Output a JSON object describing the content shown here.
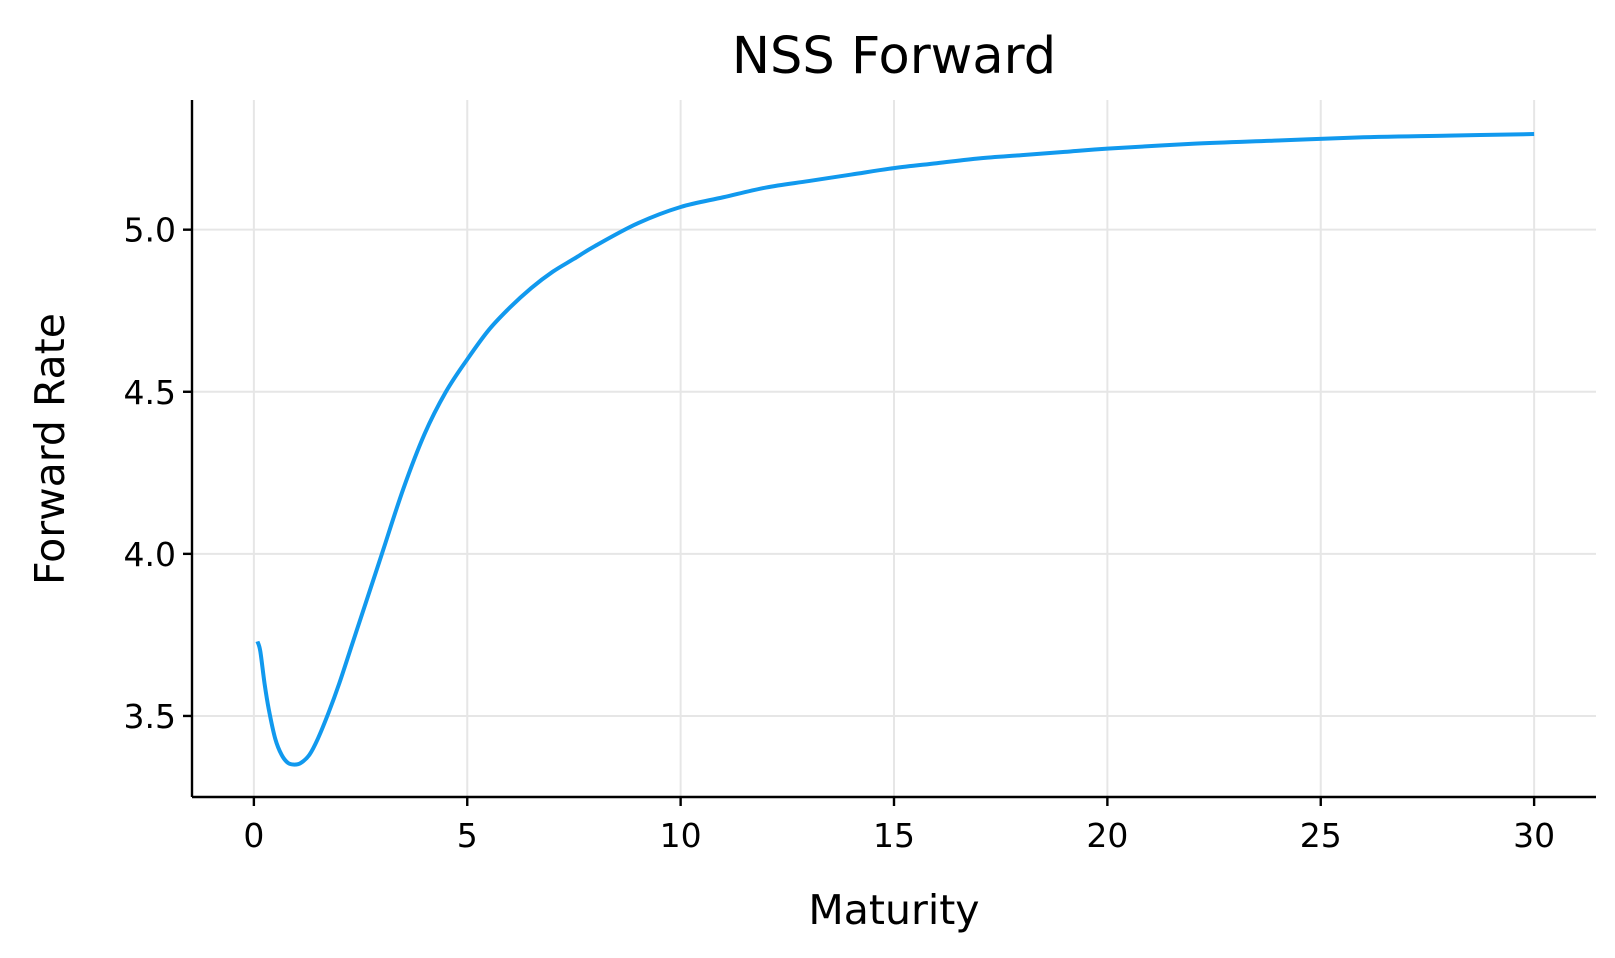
{
  "chart_data": {
    "type": "line",
    "title": "NSS Forward",
    "xlabel": "Maturity",
    "ylabel": "Forward Rate",
    "xlim": [
      -1.45,
      31.45
    ],
    "ylim": [
      3.25,
      5.4
    ],
    "xticks": [
      0,
      5,
      10,
      15,
      20,
      25,
      30
    ],
    "xtick_labels": [
      "0",
      "5",
      "10",
      "15",
      "20",
      "25",
      "30"
    ],
    "yticks": [
      3.5,
      4.0,
      4.5,
      5.0
    ],
    "ytick_labels": [
      "3.5",
      "4.0",
      "4.5",
      "5.0"
    ],
    "grid": true,
    "legend": "none",
    "colors": {
      "series": "#1199ee",
      "grid": "#e6e6e6",
      "axis": "#000000"
    },
    "series": [
      {
        "x": [
          0.083,
          0.15,
          0.25,
          0.35,
          0.5,
          0.65,
          0.8,
          0.95,
          1.1,
          1.3,
          1.5,
          1.75,
          2.0,
          2.3,
          2.6,
          3.0,
          3.5,
          4.0,
          4.5,
          5.0,
          5.5,
          6.0,
          6.5,
          7.0,
          7.5,
          8.0,
          9.0,
          10.0,
          11.0,
          12.0,
          13.0,
          14.0,
          15.0,
          16.0,
          17.0,
          18.0,
          19.0,
          20.0,
          22.0,
          24.0,
          26.0,
          28.0,
          30.0
        ],
        "y": [
          3.73,
          3.7,
          3.6,
          3.52,
          3.43,
          3.38,
          3.355,
          3.35,
          3.355,
          3.38,
          3.43,
          3.51,
          3.6,
          3.72,
          3.84,
          4.0,
          4.2,
          4.37,
          4.5,
          4.6,
          4.69,
          4.76,
          4.82,
          4.87,
          4.91,
          4.95,
          5.02,
          5.07,
          5.1,
          5.13,
          5.15,
          5.17,
          5.19,
          5.205,
          5.22,
          5.23,
          5.24,
          5.25,
          5.265,
          5.275,
          5.285,
          5.29,
          5.295
        ]
      }
    ]
  }
}
